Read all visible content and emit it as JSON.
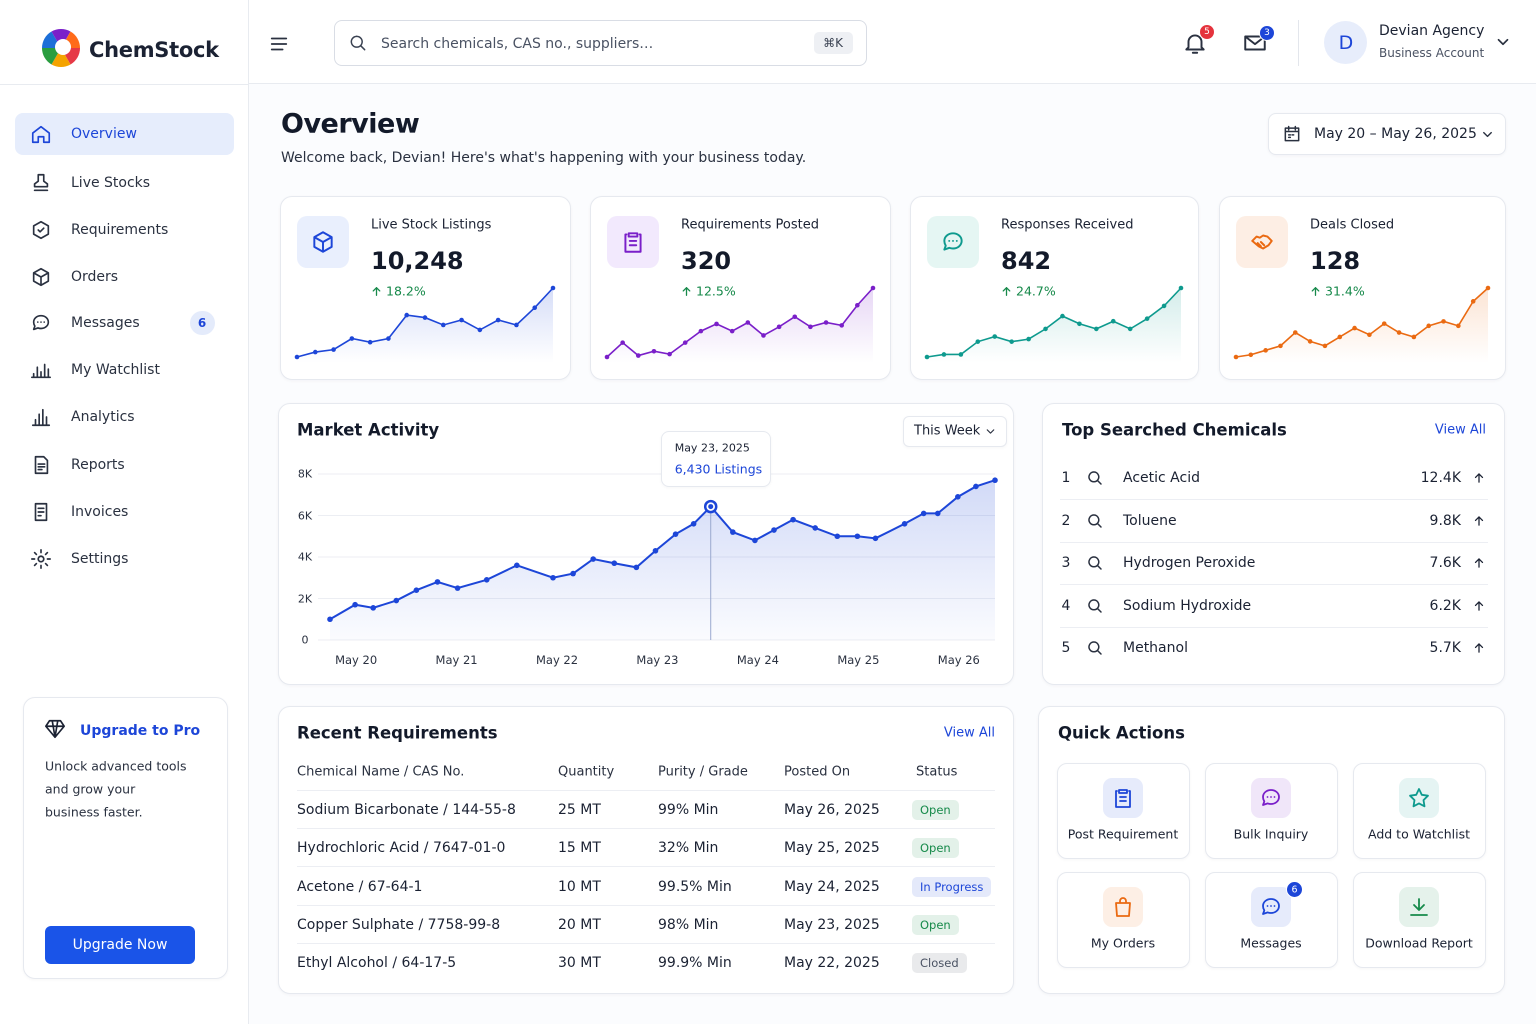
{
  "brand": "ChemStock",
  "search": {
    "placeholder": "Search chemicals, CAS no., suppliers…",
    "shortcut": "⌘K"
  },
  "notifications": {
    "alerts": 5,
    "messages": 3
  },
  "user": {
    "initial": "D",
    "name": "Devian Agency",
    "account": "Business Account"
  },
  "nav": [
    {
      "label": "Overview",
      "active": true
    },
    {
      "label": "Live Stocks"
    },
    {
      "label": "Requirements"
    },
    {
      "label": "Orders"
    },
    {
      "label": "Messages",
      "badge": 6
    },
    {
      "label": "My Watchlist"
    },
    {
      "label": "Analytics"
    },
    {
      "label": "Reports"
    },
    {
      "label": "Invoices"
    },
    {
      "label": "Settings"
    }
  ],
  "upgrade": {
    "title": "Upgrade to Pro",
    "text": [
      "Unlock advanced tools",
      "and grow your",
      "business faster."
    ],
    "button": "Upgrade Now"
  },
  "header": {
    "title": "Overview",
    "subtitle": "Welcome back, Devian! Here's what's happening with your business today.",
    "date_range": "May 20 – May 26, 2025"
  },
  "stats": [
    {
      "label": "Live Stock Listings",
      "value": "10,248",
      "change": "18.2%",
      "color": "#1d46d8",
      "icon_bg": "#e9effd",
      "spark": [
        2,
        6,
        8,
        17,
        14,
        17,
        36,
        34,
        28,
        32,
        24,
        32,
        28,
        42,
        58
      ]
    },
    {
      "label": "Requirements Posted",
      "value": "320",
      "change": "12.5%",
      "color": "#7a1fc9",
      "icon_bg": "#f2e9fd",
      "spark": [
        4,
        14,
        5,
        8,
        6,
        14,
        22,
        27,
        22,
        28,
        19,
        25,
        32,
        25,
        28,
        26,
        40,
        52
      ]
    },
    {
      "label": "Responses Received",
      "value": "842",
      "change": "24.7%",
      "color": "#0e9a8e",
      "icon_bg": "#e5f6f3",
      "spark": [
        2,
        4,
        4,
        14,
        18,
        14,
        16,
        24,
        34,
        28,
        24,
        30,
        24,
        32,
        42,
        56
      ]
    },
    {
      "label": "Deals Closed",
      "value": "128",
      "change": "31.4%",
      "color": "#ea6a12",
      "icon_bg": "#fdeee4",
      "spark": [
        2,
        4,
        8,
        12,
        24,
        16,
        12,
        20,
        28,
        22,
        32,
        24,
        20,
        30,
        34,
        30,
        52,
        64
      ]
    }
  ],
  "market": {
    "type": "line",
    "title": "Market Activity",
    "period": "This Week",
    "color": "#1d46d8",
    "x": [
      19.74,
      19.99,
      20.17,
      20.4,
      20.6,
      20.81,
      21.01,
      21.3,
      21.6,
      21.96,
      22.16,
      22.36,
      22.57,
      22.79,
      22.98,
      23.18,
      23.36,
      23.53,
      23.75,
      23.97,
      24.16,
      24.35,
      24.57,
      24.79,
      24.99,
      25.17,
      25.46,
      25.65,
      25.79,
      25.99,
      26.17,
      26.36
    ],
    "values": [
      1000,
      1700,
      1550,
      1900,
      2400,
      2800,
      2500,
      2900,
      3600,
      3000,
      3200,
      3900,
      3700,
      3500,
      4300,
      5100,
      5600,
      6430,
      5200,
      4800,
      5300,
      5800,
      5400,
      5000,
      5000,
      4900,
      5600,
      6100,
      6100,
      6900,
      7400,
      7700
    ],
    "xlim": [
      19.74,
      26.36
    ],
    "ylim": [
      0,
      8000
    ],
    "yticks": [
      0,
      {
        "value": 2000,
        "label": "2K"
      },
      {
        "value": 4000,
        "label": "4K"
      },
      {
        "value": 6000,
        "label": "6K"
      },
      {
        "value": 8000,
        "label": "8K"
      }
    ],
    "xticks": [
      {
        "value": 20,
        "label": "May 20"
      },
      {
        "value": 21,
        "label": "May 21"
      },
      {
        "value": 22,
        "label": "May 22"
      },
      {
        "value": 23,
        "label": "May 23"
      },
      {
        "value": 24,
        "label": "May 24"
      },
      {
        "value": 25,
        "label": "May 25"
      },
      {
        "value": 26,
        "label": "May 26"
      }
    ],
    "grid": true,
    "tooltip": {
      "date": "May 23, 2025",
      "label": "6,430 Listings"
    }
  },
  "top_searched": {
    "title": "Top Searched Chemicals",
    "view_all": "View All",
    "rows": [
      {
        "rank": 1,
        "name": "Acetic Acid",
        "count": "12.4K"
      },
      {
        "rank": 2,
        "name": "Toluene",
        "count": "9.8K"
      },
      {
        "rank": 3,
        "name": "Hydrogen Peroxide",
        "count": "7.6K"
      },
      {
        "rank": 4,
        "name": "Sodium Hydroxide",
        "count": "6.2K"
      },
      {
        "rank": 5,
        "name": "Methanol",
        "count": "5.7K"
      }
    ]
  },
  "recent": {
    "title": "Recent Requirements",
    "view_all": "View All",
    "columns": [
      "Chemical Name / CAS No.",
      "Quantity",
      "Purity / Grade",
      "Posted On",
      "Status"
    ],
    "rows": [
      {
        "cells": [
          "Sodium Bicarbonate / 144-55-8",
          "25 MT",
          "99% Min",
          "May 26, 2025"
        ],
        "status": "Open",
        "status_color": "#168a4a"
      },
      {
        "cells": [
          "Hydrochloric Acid / 7647-01-0",
          "15 MT",
          "32% Min",
          "May 25, 2025"
        ],
        "status": "Open",
        "status_color": "#168a4a"
      },
      {
        "cells": [
          "Acetone / 67-64-1",
          "10 MT",
          "99.5% Min",
          "May 24, 2025"
        ],
        "status": "In Progress",
        "status_color": "#1d46d8"
      },
      {
        "cells": [
          "Copper Sulphate / 7758-99-8",
          "20 MT",
          "98% Min",
          "May 23, 2025"
        ],
        "status": "Open",
        "status_color": "#168a4a"
      },
      {
        "cells": [
          "Ethyl Alcohol / 64-17-5",
          "30 MT",
          "99.9% Min",
          "May 22, 2025"
        ],
        "status": "Closed",
        "status_color": "#4a5263"
      }
    ]
  },
  "quick_actions": {
    "title": "Quick Actions",
    "items": [
      {
        "label": "Post Requirement",
        "color": "#1d46d8"
      },
      {
        "label": "Bulk Inquiry",
        "color": "#7a1fc9"
      },
      {
        "label": "Add to Watchlist",
        "color": "#0e9a8e"
      },
      {
        "label": "My Orders",
        "color": "#ea6a12"
      },
      {
        "label": "Messages",
        "color": "#1d46d8",
        "badge": 6
      },
      {
        "label": "Download Report",
        "color": "#168a4a"
      }
    ]
  }
}
